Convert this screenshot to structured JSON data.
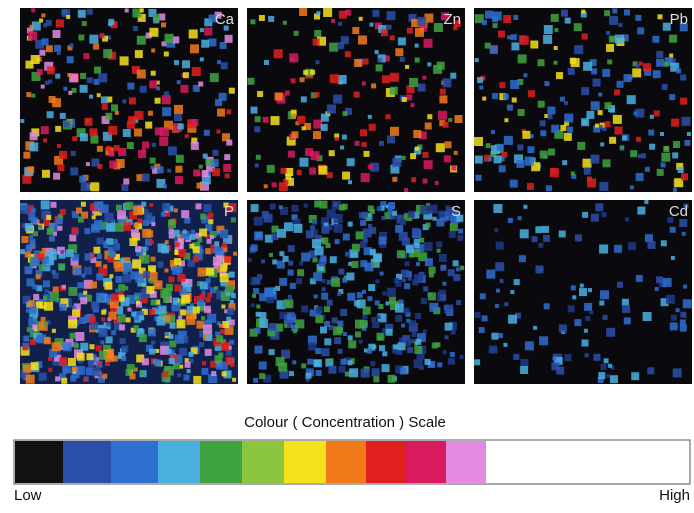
{
  "panels": [
    {
      "label": "Ca"
    },
    {
      "label": "Zn"
    },
    {
      "label": "Pb"
    },
    {
      "label": "P"
    },
    {
      "label": "S"
    },
    {
      "label": "Cd"
    }
  ],
  "scale": {
    "title": "Colour ( Concentration ) Scale",
    "low": "Low",
    "high": "High"
  }
}
